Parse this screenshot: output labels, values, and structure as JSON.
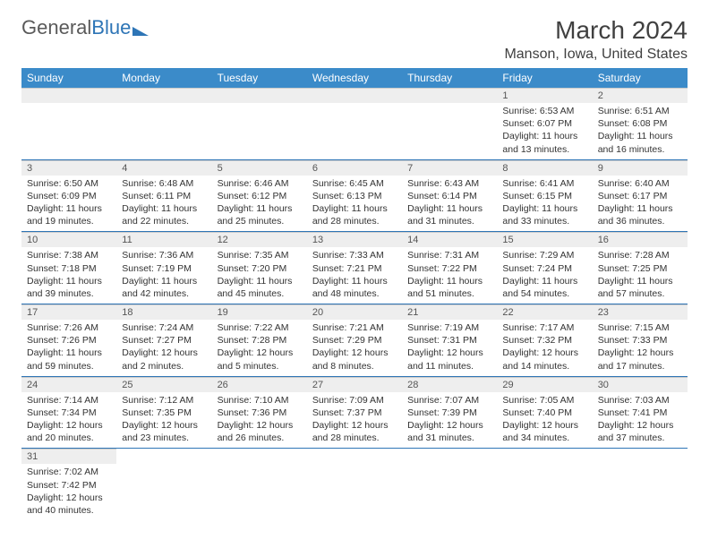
{
  "logo": {
    "part1": "General",
    "part2": "Blue"
  },
  "title": "March 2024",
  "location": "Manson, Iowa, United States",
  "colors": {
    "header_bg": "#3b8bc9",
    "header_text": "#ffffff",
    "daynum_bg": "#eeeeee",
    "week_divider": "#2e75b6",
    "text": "#333333"
  },
  "weekdays": [
    "Sunday",
    "Monday",
    "Tuesday",
    "Wednesday",
    "Thursday",
    "Friday",
    "Saturday"
  ],
  "weeks": [
    [
      null,
      null,
      null,
      null,
      null,
      {
        "n": "1",
        "sr": "Sunrise: 6:53 AM",
        "ss": "Sunset: 6:07 PM",
        "dl": "Daylight: 11 hours and 13 minutes."
      },
      {
        "n": "2",
        "sr": "Sunrise: 6:51 AM",
        "ss": "Sunset: 6:08 PM",
        "dl": "Daylight: 11 hours and 16 minutes."
      }
    ],
    [
      {
        "n": "3",
        "sr": "Sunrise: 6:50 AM",
        "ss": "Sunset: 6:09 PM",
        "dl": "Daylight: 11 hours and 19 minutes."
      },
      {
        "n": "4",
        "sr": "Sunrise: 6:48 AM",
        "ss": "Sunset: 6:11 PM",
        "dl": "Daylight: 11 hours and 22 minutes."
      },
      {
        "n": "5",
        "sr": "Sunrise: 6:46 AM",
        "ss": "Sunset: 6:12 PM",
        "dl": "Daylight: 11 hours and 25 minutes."
      },
      {
        "n": "6",
        "sr": "Sunrise: 6:45 AM",
        "ss": "Sunset: 6:13 PM",
        "dl": "Daylight: 11 hours and 28 minutes."
      },
      {
        "n": "7",
        "sr": "Sunrise: 6:43 AM",
        "ss": "Sunset: 6:14 PM",
        "dl": "Daylight: 11 hours and 31 minutes."
      },
      {
        "n": "8",
        "sr": "Sunrise: 6:41 AM",
        "ss": "Sunset: 6:15 PM",
        "dl": "Daylight: 11 hours and 33 minutes."
      },
      {
        "n": "9",
        "sr": "Sunrise: 6:40 AM",
        "ss": "Sunset: 6:17 PM",
        "dl": "Daylight: 11 hours and 36 minutes."
      }
    ],
    [
      {
        "n": "10",
        "sr": "Sunrise: 7:38 AM",
        "ss": "Sunset: 7:18 PM",
        "dl": "Daylight: 11 hours and 39 minutes."
      },
      {
        "n": "11",
        "sr": "Sunrise: 7:36 AM",
        "ss": "Sunset: 7:19 PM",
        "dl": "Daylight: 11 hours and 42 minutes."
      },
      {
        "n": "12",
        "sr": "Sunrise: 7:35 AM",
        "ss": "Sunset: 7:20 PM",
        "dl": "Daylight: 11 hours and 45 minutes."
      },
      {
        "n": "13",
        "sr": "Sunrise: 7:33 AM",
        "ss": "Sunset: 7:21 PM",
        "dl": "Daylight: 11 hours and 48 minutes."
      },
      {
        "n": "14",
        "sr": "Sunrise: 7:31 AM",
        "ss": "Sunset: 7:22 PM",
        "dl": "Daylight: 11 hours and 51 minutes."
      },
      {
        "n": "15",
        "sr": "Sunrise: 7:29 AM",
        "ss": "Sunset: 7:24 PM",
        "dl": "Daylight: 11 hours and 54 minutes."
      },
      {
        "n": "16",
        "sr": "Sunrise: 7:28 AM",
        "ss": "Sunset: 7:25 PM",
        "dl": "Daylight: 11 hours and 57 minutes."
      }
    ],
    [
      {
        "n": "17",
        "sr": "Sunrise: 7:26 AM",
        "ss": "Sunset: 7:26 PM",
        "dl": "Daylight: 11 hours and 59 minutes."
      },
      {
        "n": "18",
        "sr": "Sunrise: 7:24 AM",
        "ss": "Sunset: 7:27 PM",
        "dl": "Daylight: 12 hours and 2 minutes."
      },
      {
        "n": "19",
        "sr": "Sunrise: 7:22 AM",
        "ss": "Sunset: 7:28 PM",
        "dl": "Daylight: 12 hours and 5 minutes."
      },
      {
        "n": "20",
        "sr": "Sunrise: 7:21 AM",
        "ss": "Sunset: 7:29 PM",
        "dl": "Daylight: 12 hours and 8 minutes."
      },
      {
        "n": "21",
        "sr": "Sunrise: 7:19 AM",
        "ss": "Sunset: 7:31 PM",
        "dl": "Daylight: 12 hours and 11 minutes."
      },
      {
        "n": "22",
        "sr": "Sunrise: 7:17 AM",
        "ss": "Sunset: 7:32 PM",
        "dl": "Daylight: 12 hours and 14 minutes."
      },
      {
        "n": "23",
        "sr": "Sunrise: 7:15 AM",
        "ss": "Sunset: 7:33 PM",
        "dl": "Daylight: 12 hours and 17 minutes."
      }
    ],
    [
      {
        "n": "24",
        "sr": "Sunrise: 7:14 AM",
        "ss": "Sunset: 7:34 PM",
        "dl": "Daylight: 12 hours and 20 minutes."
      },
      {
        "n": "25",
        "sr": "Sunrise: 7:12 AM",
        "ss": "Sunset: 7:35 PM",
        "dl": "Daylight: 12 hours and 23 minutes."
      },
      {
        "n": "26",
        "sr": "Sunrise: 7:10 AM",
        "ss": "Sunset: 7:36 PM",
        "dl": "Daylight: 12 hours and 26 minutes."
      },
      {
        "n": "27",
        "sr": "Sunrise: 7:09 AM",
        "ss": "Sunset: 7:37 PM",
        "dl": "Daylight: 12 hours and 28 minutes."
      },
      {
        "n": "28",
        "sr": "Sunrise: 7:07 AM",
        "ss": "Sunset: 7:39 PM",
        "dl": "Daylight: 12 hours and 31 minutes."
      },
      {
        "n": "29",
        "sr": "Sunrise: 7:05 AM",
        "ss": "Sunset: 7:40 PM",
        "dl": "Daylight: 12 hours and 34 minutes."
      },
      {
        "n": "30",
        "sr": "Sunrise: 7:03 AM",
        "ss": "Sunset: 7:41 PM",
        "dl": "Daylight: 12 hours and 37 minutes."
      }
    ],
    [
      {
        "n": "31",
        "sr": "Sunrise: 7:02 AM",
        "ss": "Sunset: 7:42 PM",
        "dl": "Daylight: 12 hours and 40 minutes."
      },
      null,
      null,
      null,
      null,
      null,
      null
    ]
  ]
}
